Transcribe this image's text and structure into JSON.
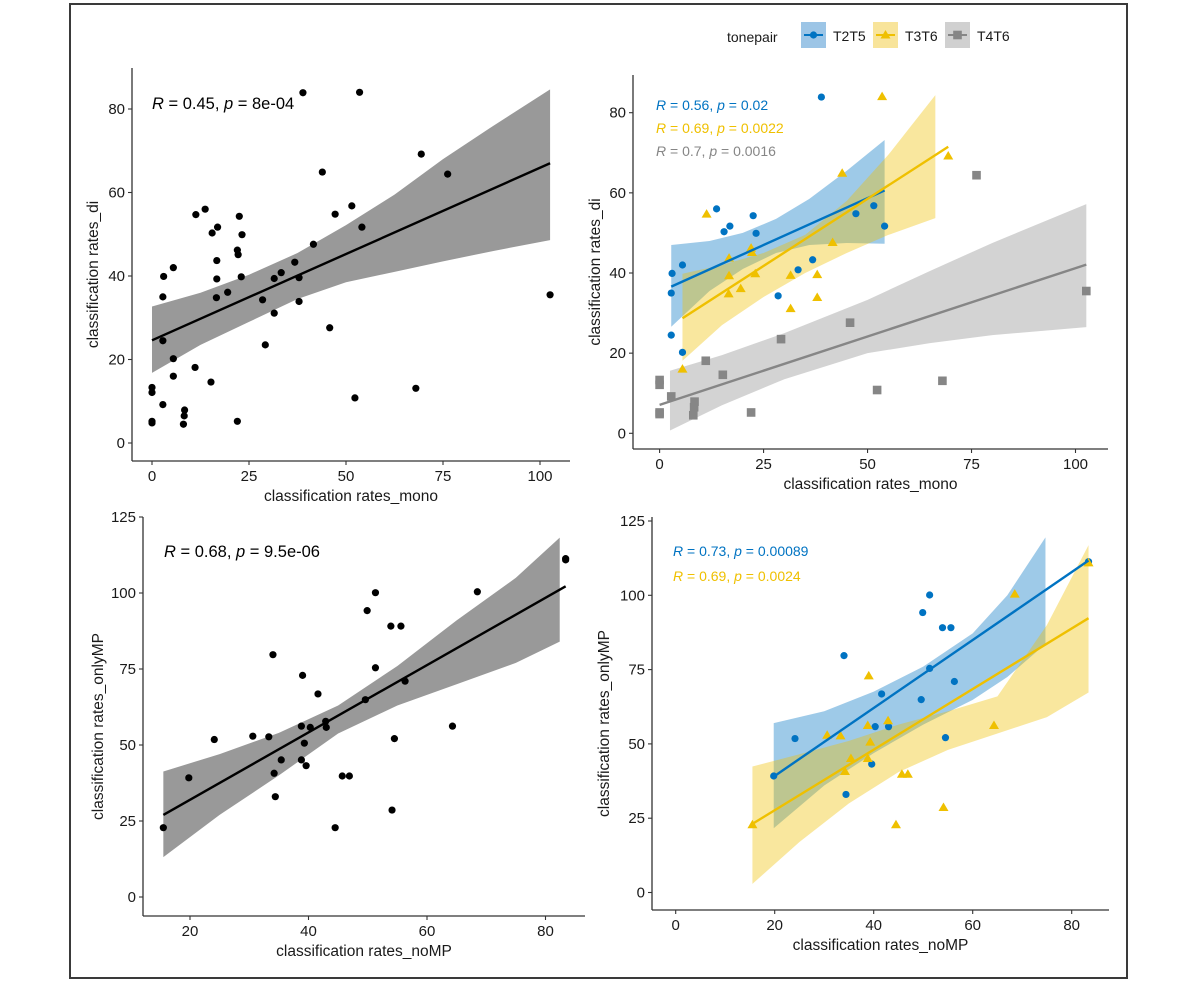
{
  "legend": {
    "title": "tonepair",
    "items": [
      {
        "label": "T2T5",
        "color": "#0073C2",
        "fill": "#9CC5E6",
        "shape": "circle"
      },
      {
        "label": "T3T6",
        "color": "#EFC000",
        "fill": "#F8E49A",
        "shape": "triangle"
      },
      {
        "label": "T4T6",
        "color": "#868686",
        "fill": "#D0D0D0",
        "shape": "square"
      }
    ]
  },
  "chart_data": [
    {
      "id": "top-left",
      "type": "scatter",
      "title": "",
      "xlabel": "classification rates_mono",
      "ylabel": "classification rates_di",
      "xlim": [
        -5,
        107
      ],
      "ylim": [
        -5,
        88
      ],
      "xticks": [
        0,
        25,
        50,
        75,
        100
      ],
      "yticks": [
        0,
        20,
        40,
        60,
        80
      ],
      "grid": false,
      "annotations": [
        {
          "r_label": "R",
          "text": " = 0.45, ",
          "p_label": "p",
          "text2": " = 8e-04",
          "color": "#000000"
        }
      ],
      "series": [
        {
          "name": "all",
          "color": "#000000",
          "shape": "circle",
          "band_fill": "#999999",
          "points_from": [
            "T2T5",
            "T3T6",
            "T4T6"
          ],
          "fit_line": [
            [
              0,
              24.6
            ],
            [
              102.6,
              67.0
            ]
          ],
          "band": [
            [
              0,
              16.8,
              32.7
            ],
            [
              12.5,
              23.5,
              36.0
            ],
            [
              25,
              29.0,
              40.3
            ],
            [
              37.5,
              34.5,
              45.5
            ],
            [
              50,
              38.5,
              52.2
            ],
            [
              62.5,
              41.0,
              59.5
            ],
            [
              75,
              43.5,
              68.0
            ],
            [
              88,
              46.0,
              76.0
            ],
            [
              102.6,
              48.6,
              84.7
            ]
          ]
        }
      ]
    },
    {
      "id": "top-right",
      "type": "scatter",
      "title": "",
      "xlabel": "classification rates_mono",
      "ylabel": "classification rates_di",
      "xlim": [
        -5,
        107
      ],
      "ylim": [
        -5,
        88
      ],
      "xticks": [
        0,
        25,
        50,
        75,
        100
      ],
      "yticks": [
        0,
        20,
        40,
        60,
        80
      ],
      "grid": false,
      "legend_position": "top",
      "annotations": [
        {
          "r_label": "R",
          "text": " = 0.56, ",
          "p_label": "p",
          "text2": " = 0.02",
          "color": "#0073C2"
        },
        {
          "r_label": "R",
          "text": " = 0.69, ",
          "p_label": "p",
          "text2": " = 0.0022",
          "color": "#EFC000"
        },
        {
          "r_label": "R",
          "text": " = 0.7, ",
          "p_label": "p",
          "text2": " = 0.0016",
          "color": "#868686"
        }
      ],
      "series": [
        {
          "name": "T2T5",
          "color": "#0073C2",
          "shape": "circle",
          "band_fill": "#0073C2",
          "points": [
            [
              38.9,
              83.9
            ],
            [
              13.7,
              56.0
            ],
            [
              22.5,
              54.3
            ],
            [
              15.5,
              50.3
            ],
            [
              16.9,
              51.7
            ],
            [
              23.2,
              49.9
            ],
            [
              5.5,
              42.0
            ],
            [
              3.0,
              39.9
            ],
            [
              2.8,
              35.0
            ],
            [
              2.8,
              24.5
            ],
            [
              5.5,
              20.2
            ],
            [
              28.5,
              34.3
            ],
            [
              33.3,
              40.8
            ],
            [
              36.8,
              43.3
            ],
            [
              47.2,
              54.8
            ],
            [
              51.5,
              56.8
            ],
            [
              54.1,
              51.7
            ]
          ],
          "fit_line": [
            [
              2.8,
              36.6
            ],
            [
              54.1,
              60.6
            ]
          ],
          "band": [
            [
              2.8,
              26.6,
              47.0
            ],
            [
              12,
              35.5,
              48.0
            ],
            [
              20,
              41.0,
              50.0
            ],
            [
              28,
              45.0,
              53.5
            ],
            [
              36,
              47.0,
              58.5
            ],
            [
              45,
              47.5,
              65.5
            ],
            [
              54.1,
              47.3,
              73.2
            ]
          ]
        },
        {
          "name": "T3T6",
          "color": "#EFC000",
          "shape": "triangle",
          "band_fill": "#EFC000",
          "points": [
            [
              53.5,
              84.0
            ],
            [
              69.4,
              69.2
            ],
            [
              43.9,
              64.9
            ],
            [
              11.3,
              54.7
            ],
            [
              22.0,
              46.2
            ],
            [
              22.2,
              45.1
            ],
            [
              16.7,
              43.7
            ],
            [
              41.6,
              47.6
            ],
            [
              16.7,
              39.3
            ],
            [
              23.0,
              39.8
            ],
            [
              31.5,
              39.4
            ],
            [
              37.9,
              39.6
            ],
            [
              19.5,
              36.1
            ],
            [
              16.6,
              34.8
            ],
            [
              37.9,
              33.9
            ],
            [
              31.5,
              31.1
            ],
            [
              5.5,
              16.0
            ]
          ],
          "fit_line": [
            [
              5.5,
              28.7
            ],
            [
              69.4,
              71.5
            ]
          ],
          "band": [
            [
              5.5,
              18.1,
              39.8
            ],
            [
              15,
              27.0,
              42.0
            ],
            [
              25,
              34.0,
              45.0
            ],
            [
              35,
              40.0,
              49.5
            ],
            [
              45,
              45.0,
              58.0
            ],
            [
              55,
              49.5,
              69.5
            ],
            [
              66.3,
              53.7,
              84.4
            ]
          ]
        },
        {
          "name": "T4T6",
          "color": "#868686",
          "shape": "square",
          "band_fill": "#A8A8A8",
          "points": [
            [
              76.2,
              64.4
            ],
            [
              102.6,
              35.5
            ],
            [
              45.8,
              27.6
            ],
            [
              29.2,
              23.5
            ],
            [
              11.1,
              18.1
            ],
            [
              15.2,
              14.6
            ],
            [
              68.0,
              13.1
            ],
            [
              0,
              13.3
            ],
            [
              0,
              12.1
            ],
            [
              52.3,
              10.8
            ],
            [
              2.8,
              9.2
            ],
            [
              8.4,
              7.9
            ],
            [
              8.3,
              6.5
            ],
            [
              0,
              5.2
            ],
            [
              0,
              4.8
            ],
            [
              8.1,
              4.5
            ],
            [
              22.0,
              5.2
            ]
          ],
          "fit_line": [
            [
              0,
              7.1
            ],
            [
              102.6,
              42.1
            ]
          ],
          "band": [
            [
              2.5,
              0.7,
              15.6
            ],
            [
              15,
              7.0,
              19.5
            ],
            [
              30,
              13.5,
              25.0
            ],
            [
              50,
              20.0,
              33.3
            ],
            [
              65,
              22.5,
              40.5
            ],
            [
              80,
              24.5,
              47.5
            ],
            [
              102.6,
              26.5,
              57.2
            ]
          ]
        }
      ]
    },
    {
      "id": "bottom-left",
      "type": "scatter",
      "title": "",
      "xlabel": "classification rates_noMP",
      "ylabel": "classification rates_onlyMP",
      "xlim": [
        12,
        86.5
      ],
      "ylim": [
        -6,
        126
      ],
      "xticks": [
        20,
        40,
        60,
        80
      ],
      "yticks": [
        0,
        25,
        50,
        75,
        100,
        125
      ],
      "grid": false,
      "annotations": [
        {
          "r_label": "R",
          "text": " = 0.68, ",
          "p_label": "p",
          "text2": " = 9.5e-06",
          "color": "#000000"
        }
      ],
      "series": [
        {
          "name": "all",
          "color": "#000000",
          "shape": "circle",
          "band_fill": "#999999",
          "points_from": [
            "T2T5",
            "T3T6"
          ],
          "fit_line": [
            [
              15.5,
              27.0
            ],
            [
              83.4,
              102.2
            ]
          ],
          "band": [
            [
              15.5,
              13.1,
              41.3
            ],
            [
              25,
              27.0,
              47.0
            ],
            [
              35,
              40.0,
              54.0
            ],
            [
              45,
              53.8,
              63.0
            ],
            [
              55,
              63.0,
              76.0
            ],
            [
              65,
              70.0,
              91.0
            ],
            [
              75,
              77.0,
              105.0
            ],
            [
              82.4,
              84.0,
              118.2
            ]
          ]
        }
      ]
    },
    {
      "id": "bottom-right",
      "type": "scatter",
      "title": "",
      "xlabel": "classification rates_noMP",
      "ylabel": "classification rates_onlyMP",
      "xlim": [
        -5,
        88
      ],
      "ylim": [
        -6,
        126
      ],
      "xticks": [
        0,
        20,
        40,
        60,
        80
      ],
      "yticks": [
        0,
        25,
        50,
        75,
        100,
        125
      ],
      "grid": false,
      "annotations": [
        {
          "r_label": "R",
          "text": " = 0.73, ",
          "p_label": "p",
          "text2": " = 0.00089",
          "color": "#0073C2"
        },
        {
          "r_label": "R",
          "text": " = 0.69, ",
          "p_label": "p",
          "text2": " = 0.0024",
          "color": "#EFC000"
        }
      ],
      "series": [
        {
          "name": "T2T5",
          "color": "#0073C2",
          "shape": "circle",
          "band_fill": "#0073C2",
          "points": [
            [
              51.3,
              100.1
            ],
            [
              49.9,
              94.2
            ],
            [
              53.9,
              89.1
            ],
            [
              55.6,
              89.1
            ],
            [
              34.0,
              79.7
            ],
            [
              51.3,
              75.4
            ],
            [
              56.3,
              71.0
            ],
            [
              41.6,
              66.8
            ],
            [
              49.6,
              64.9
            ],
            [
              40.3,
              55.8
            ],
            [
              43.0,
              55.8
            ],
            [
              24.1,
              51.8
            ],
            [
              54.5,
              52.1
            ],
            [
              39.6,
              43.2
            ],
            [
              19.8,
              39.2
            ],
            [
              34.4,
              33.0
            ],
            [
              83.4,
              111.3
            ]
          ],
          "fit_line": [
            [
              19.8,
              39.0
            ],
            [
              83.4,
              111.7
            ]
          ],
          "band": [
            [
              19.8,
              21.6,
              57.0
            ],
            [
              30,
              36.0,
              61.0
            ],
            [
              40,
              46.9,
              67.6
            ],
            [
              50,
              56.5,
              76.0
            ],
            [
              60,
              64.8,
              87.2
            ],
            [
              67,
              72.5,
              100.0
            ],
            [
              74.7,
              83.6,
              119.5
            ]
          ]
        },
        {
          "name": "T3T6",
          "color": "#EFC000",
          "shape": "triangle",
          "band_fill": "#EFC000",
          "points": [
            [
              83.4,
              110.9
            ],
            [
              68.5,
              100.4
            ],
            [
              39.0,
              72.9
            ],
            [
              64.3,
              56.2
            ],
            [
              42.9,
              57.8
            ],
            [
              38.8,
              56.2
            ],
            [
              30.6,
              52.9
            ],
            [
              33.3,
              52.7
            ],
            [
              39.3,
              50.6
            ],
            [
              35.4,
              45.1
            ],
            [
              38.8,
              45.1
            ],
            [
              34.2,
              40.7
            ],
            [
              45.7,
              39.8
            ],
            [
              46.9,
              39.8
            ],
            [
              54.1,
              28.6
            ],
            [
              44.5,
              22.8
            ],
            [
              15.5,
              22.8
            ]
          ],
          "fit_line": [
            [
              15.5,
              23.1
            ],
            [
              83.4,
              92.3
            ]
          ],
          "band": [
            [
              15.5,
              2.9,
              42.4
            ],
            [
              25,
              17.0,
              46.5
            ],
            [
              35,
              30.0,
              51.0
            ],
            [
              45,
              40.5,
              56.5
            ],
            [
              55,
              48.0,
              61.0
            ],
            [
              65,
              53.5,
              66.0
            ],
            [
              75,
              59.0,
              90.0
            ],
            [
              83.4,
              67.3,
              116.9
            ]
          ]
        }
      ]
    }
  ]
}
